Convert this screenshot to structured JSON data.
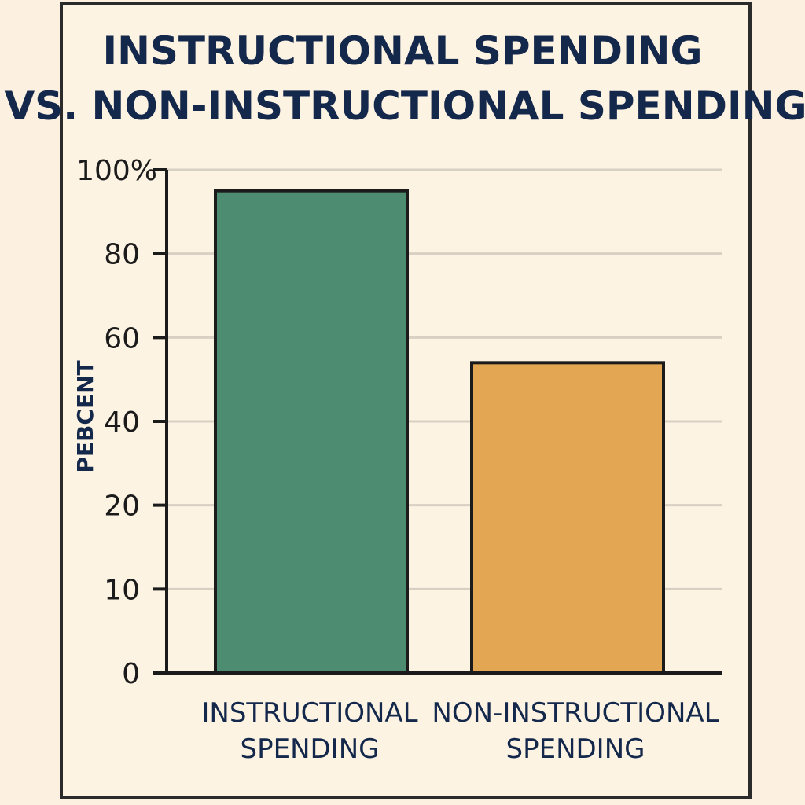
{
  "chart_data": {
    "type": "bar",
    "title": [
      "INSTRUCTIONAL SPENDING",
      "VS. NON-INSTRUCTIONAL SPENDING"
    ],
    "ylabel": "PEBCENT",
    "xlabel": "",
    "y_ticks": [
      {
        "value": 0,
        "label": "0"
      },
      {
        "value": 10,
        "label": "10"
      },
      {
        "value": 20,
        "label": "20"
      },
      {
        "value": 40,
        "label": "40"
      },
      {
        "value": 60,
        "label": "60"
      },
      {
        "value": 80,
        "label": "80"
      },
      {
        "value": 100,
        "label": "100%"
      }
    ],
    "categories": [
      [
        "INSTRUCTIONAL",
        "SPENDING"
      ],
      [
        "NON-INSTRUCTIONAL",
        "SPENDING"
      ]
    ],
    "values": [
      95,
      54
    ],
    "colors": [
      "#4e8c72",
      "#e3a653"
    ],
    "grid": true,
    "legend": "none"
  }
}
